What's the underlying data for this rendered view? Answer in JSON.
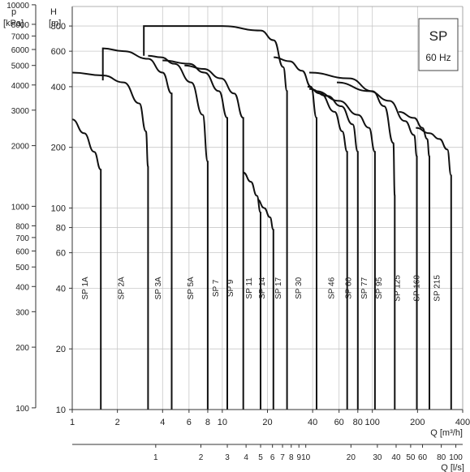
{
  "chart_data": {
    "type": "line",
    "title_box": {
      "title": "SP",
      "subtitle": "60 Hz"
    },
    "x_axis": {
      "label": "Q [m³/h]",
      "scale": "log",
      "range": [
        1,
        400
      ],
      "ticks": [
        {
          "v": 1,
          "t": "1"
        },
        {
          "v": 2,
          "t": "2"
        },
        {
          "v": 4,
          "t": "4"
        },
        {
          "v": 6,
          "t": "6"
        },
        {
          "v": 8,
          "t": "8"
        },
        {
          "v": 10,
          "t": "10"
        },
        {
          "v": 20,
          "t": "20"
        },
        {
          "v": 40,
          "t": "40"
        },
        {
          "v": 60,
          "t": "60"
        },
        {
          "v": 80,
          "t": "80"
        },
        {
          "v": 100,
          "t": "100"
        },
        {
          "v": 200,
          "t": "200"
        },
        {
          "v": 400,
          "t": "400"
        }
      ]
    },
    "x2_axis": {
      "label": "Q [l/s]",
      "scale": "log",
      "ticks": [
        {
          "v": 1,
          "t": "1"
        },
        {
          "v": 2,
          "t": "2"
        },
        {
          "v": 3,
          "t": "3"
        },
        {
          "v": 4,
          "t": "4"
        },
        {
          "v": 5,
          "t": "5"
        },
        {
          "v": 6,
          "t": "6"
        },
        {
          "v": 7,
          "t": "7"
        },
        {
          "v": 8,
          "t": "8"
        },
        {
          "v": 9,
          "t": "9"
        },
        {
          "v": 10,
          "t": "10"
        },
        {
          "v": 20,
          "t": "20"
        },
        {
          "v": 30,
          "t": "30"
        },
        {
          "v": 40,
          "t": "40"
        },
        {
          "v": 50,
          "t": "50"
        },
        {
          "v": 60,
          "t": "60"
        },
        {
          "v": 80,
          "t": "80"
        },
        {
          "v": 100,
          "t": "100"
        }
      ]
    },
    "y_axis": {
      "label_unit": "[m]",
      "label_symbol": "H",
      "scale": "log",
      "range": [
        10,
        1000
      ],
      "ticks": [
        {
          "v": 10,
          "t": "10"
        },
        {
          "v": 20,
          "t": "20"
        },
        {
          "v": 40,
          "t": "40"
        },
        {
          "v": 60,
          "t": "60"
        },
        {
          "v": 80,
          "t": "80"
        },
        {
          "v": 100,
          "t": "100"
        },
        {
          "v": 200,
          "t": "200"
        },
        {
          "v": 400,
          "t": "400"
        },
        {
          "v": 600,
          "t": "600"
        },
        {
          "v": 800,
          "t": "800"
        }
      ]
    },
    "y2_axis": {
      "label_unit": "[kPa]",
      "label_symbol": "p",
      "scale": "log",
      "ticks": [
        {
          "v": 100,
          "t": "100"
        },
        {
          "v": 200,
          "t": "200"
        },
        {
          "v": 300,
          "t": "300"
        },
        {
          "v": 400,
          "t": "400"
        },
        {
          "v": 500,
          "t": "500"
        },
        {
          "v": 600,
          "t": "600"
        },
        {
          "v": 700,
          "t": "700"
        },
        {
          "v": 800,
          "t": "800"
        },
        {
          "v": 1000,
          "t": "1000"
        },
        {
          "v": 2000,
          "t": "2000"
        },
        {
          "v": 3000,
          "t": "3000"
        },
        {
          "v": 4000,
          "t": "4000"
        },
        {
          "v": 5000,
          "t": "5000"
        },
        {
          "v": 6000,
          "t": "6000"
        },
        {
          "v": 7000,
          "t": "7000"
        },
        {
          "v": 8000,
          "t": "8000"
        },
        {
          "v": 10000,
          "t": "10000"
        }
      ]
    },
    "grid": true,
    "series": [
      {
        "name": "SP 1A",
        "points": [
          [
            1,
            275
          ],
          [
            1.2,
            235
          ],
          [
            1.4,
            190
          ],
          [
            1.55,
            155
          ]
        ],
        "qmax": 1.55,
        "label_x": 1.27
      },
      {
        "name": "SP 2A",
        "points": [
          [
            1,
            470
          ],
          [
            1.6,
            455
          ],
          [
            2.2,
            420
          ],
          [
            2.8,
            330
          ],
          [
            3.1,
            240
          ],
          [
            3.2,
            160
          ]
        ],
        "qmax": 3.2,
        "label_x": 2.2
      },
      {
        "name": "SP 3A",
        "points": [
          [
            1.6,
            430
          ],
          [
            1.6,
            620
          ],
          [
            2.2,
            600
          ],
          [
            3.2,
            550
          ],
          [
            4.0,
            470
          ],
          [
            4.6,
            370
          ]
        ],
        "qmax": 4.6,
        "label_x": 3.9
      },
      {
        "name": "SP 5A",
        "points": [
          [
            3.2,
            570
          ],
          [
            3.9,
            560
          ],
          [
            4.8,
            520
          ],
          [
            6.2,
            420
          ],
          [
            7.4,
            290
          ],
          [
            8.0,
            170
          ]
        ],
        "qmax": 8.0,
        "label_x": 6.4
      },
      {
        "name": "SP 7",
        "points": [
          [
            4.0,
            540
          ],
          [
            6.0,
            520
          ],
          [
            7.6,
            470
          ],
          [
            9.5,
            380
          ],
          [
            10.8,
            280
          ]
        ],
        "qmax": 10.8,
        "label_x": 9.4
      },
      {
        "name": "SP 9",
        "points": [
          [
            5.6,
            510
          ],
          [
            7.5,
            490
          ],
          [
            9.8,
            440
          ],
          [
            12.0,
            370
          ],
          [
            13.8,
            280
          ]
        ],
        "qmax": 13.8,
        "label_x": 11.8
      },
      {
        "name": "SP 11",
        "points": [
          [
            13.8,
            150
          ],
          [
            15.5,
            135
          ],
          [
            17.0,
            115
          ],
          [
            18.0,
            95
          ]
        ],
        "qmax": 18.0,
        "label_x": 15.7
      },
      {
        "name": "SP 14",
        "points": [
          [
            17.2,
            110
          ],
          [
            19.0,
            100
          ],
          [
            20.8,
            90
          ],
          [
            21.9,
            78
          ]
        ],
        "qmax": 21.9,
        "label_x": 19.1
      },
      {
        "name": "SP 17",
        "points": [
          [
            3.0,
            570
          ],
          [
            3.0,
            800
          ],
          [
            10,
            800
          ],
          [
            18,
            760
          ],
          [
            22,
            680
          ],
          [
            25.5,
            500
          ],
          [
            27.0,
            380
          ]
        ],
        "qmax": 27.0,
        "label_x": 24.5
      },
      {
        "name": "SP 30",
        "points": [
          [
            22,
            560
          ],
          [
            28,
            535
          ],
          [
            34,
            480
          ],
          [
            39,
            400
          ],
          [
            42.5,
            280
          ]
        ],
        "qmax": 42.5,
        "label_x": 33.5
      },
      {
        "name": "SP 46",
        "points": [
          [
            37,
            400
          ],
          [
            45,
            370
          ],
          [
            56,
            300
          ],
          [
            63,
            240
          ],
          [
            68,
            190
          ]
        ],
        "qmax": 68.0,
        "label_x": 55.5
      },
      {
        "name": "SP 60",
        "points": [
          [
            38,
            390
          ],
          [
            50,
            360
          ],
          [
            62,
            320
          ],
          [
            74,
            260
          ],
          [
            80,
            190
          ]
        ],
        "qmax": 80.0,
        "label_x": 72.3
      },
      {
        "name": "SP 77",
        "points": [
          [
            42,
            380
          ],
          [
            60,
            340
          ],
          [
            80,
            290
          ],
          [
            95,
            250
          ],
          [
            104,
            190
          ]
        ],
        "qmax": 104.0,
        "label_x": 91.8
      },
      {
        "name": "SP 95",
        "points": [
          [
            38,
            470
          ],
          [
            70,
            440
          ],
          [
            100,
            380
          ],
          [
            120,
            320
          ],
          [
            138,
            210
          ],
          [
            141,
            115
          ]
        ],
        "qmax": 141.0,
        "label_x": 115.0
      },
      {
        "name": "SP 125",
        "points": [
          [
            58,
            420
          ],
          [
            95,
            380
          ],
          [
            130,
            340
          ],
          [
            165,
            270
          ],
          [
            190,
            230
          ],
          [
            198,
            180
          ]
        ],
        "qmax": 198.0,
        "label_x": 152.0
      },
      {
        "name": "SP 160",
        "points": [
          [
            150,
            300
          ],
          [
            190,
            280
          ],
          [
            215,
            250
          ],
          [
            232,
            220
          ],
          [
            240,
            180
          ]
        ],
        "qmax": 240.0,
        "label_x": 206.0
      },
      {
        "name": "SP 215",
        "points": [
          [
            195,
            250
          ],
          [
            240,
            235
          ],
          [
            280,
            220
          ],
          [
            316,
            195
          ],
          [
            335,
            145
          ]
        ],
        "qmax": 335.0,
        "label_x": 281.0
      }
    ]
  }
}
